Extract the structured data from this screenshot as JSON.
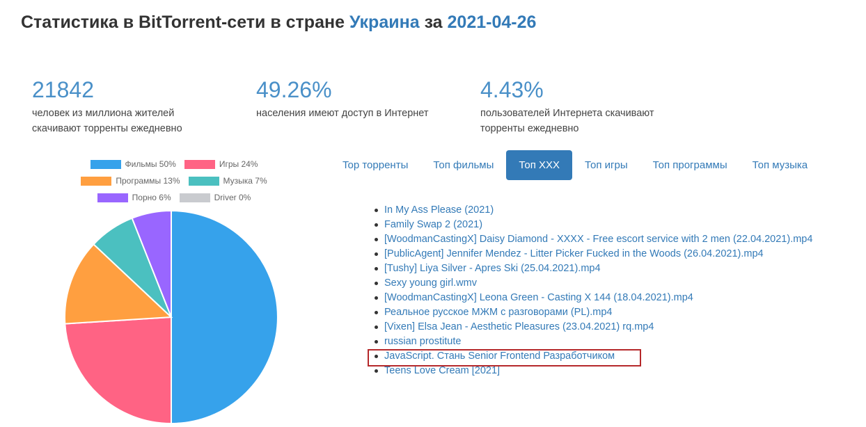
{
  "header": {
    "title_prefix": "Статистика в BitTorrent-сети в стране",
    "country": "Украина",
    "title_middle": "за",
    "date": "2021-04-26"
  },
  "stats": [
    {
      "value": "21842",
      "description": "человек из миллиона жителей скачивают торренты ежедневно"
    },
    {
      "value": "49.26%",
      "description": "населения имеют доступ в Интернет"
    },
    {
      "value": "4.43%",
      "description": "пользователей Интернета скачивают торренты ежедневно"
    }
  ],
  "tabs": [
    {
      "label": "Top торренты",
      "active": false
    },
    {
      "label": "Топ фильмы",
      "active": false
    },
    {
      "label": "Топ XXX",
      "active": true
    },
    {
      "label": "Топ игры",
      "active": false
    },
    {
      "label": "Топ программы",
      "active": false
    },
    {
      "label": "Топ музыка",
      "active": false
    }
  ],
  "torrents": [
    "In My Ass Please (2021)",
    "Family Swap 2 (2021)",
    "[WoodmanCastingX] Daisy Diamond - XXXX - Free escort service with 2 men (22.04.2021).mp4",
    "[PublicAgent] Jennifer Mendez - Litter Picker Fucked in the Woods (26.04.2021).mp4",
    "[Tushy] Liya Silver - Apres Ski (25.04.2021).mp4",
    "Sexy young girl.wmv",
    "[WoodmanCastingX] Leona Green - Casting X 144 (18.04.2021).mp4",
    "Реальное русское МЖМ с разговорами (PL).mp4",
    "[Vixen] Elsa Jean - Aesthetic Pleasures (23.04.2021) rq.mp4",
    "russian prostitute",
    "JavaScript. Стань Senior Frontend Разработчиком",
    "Teens Love Cream [2021]"
  ],
  "highlighted_torrent_index": 10,
  "highlight_color": "#b5282a",
  "chart_data": {
    "type": "pie",
    "legend": [
      "Фильмы 50%",
      "Игры 24%",
      "Программы 13%",
      "Музыка 7%",
      "Порно 6%",
      "Driver 0%"
    ],
    "slices": [
      {
        "value": 50,
        "color": "#36a2eb"
      },
      {
        "value": 24,
        "color": "#ff6384"
      },
      {
        "value": 13,
        "color": "#ff9f40"
      },
      {
        "value": 7,
        "color": "#4bc0c0"
      },
      {
        "value": 6,
        "color": "#9966ff"
      },
      {
        "value": 0,
        "color": "#c9cbcf"
      }
    ]
  }
}
